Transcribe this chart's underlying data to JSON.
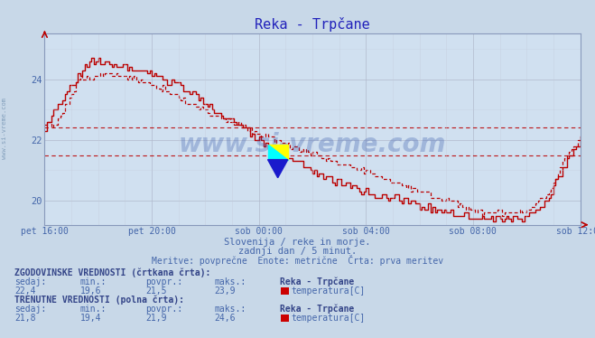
{
  "title": "Reka - Trpčane",
  "subtitle1": "Slovenija / reke in morje.",
  "subtitle2": "zadnji dan / 5 minut.",
  "subtitle3": "Meritve: povprečne  Enote: metrične  Črta: prva meritev",
  "xlabel_ticks": [
    "pet 16:00",
    "pet 20:00",
    "sob 00:00",
    "sob 04:00",
    "sob 08:00",
    "sob 12:00"
  ],
  "ylabel_ticks": [
    20,
    22,
    24
  ],
  "ylim": [
    19.2,
    25.5
  ],
  "xlim": [
    0,
    240
  ],
  "tick_positions": [
    0,
    48,
    96,
    144,
    192,
    240
  ],
  "bg_color": "#c8d8e8",
  "plot_bg_color": "#d0e0f0",
  "grid_color_major": "#b0b8cc",
  "grid_color_minor": "#c4ccdc",
  "line_color": "#bb0000",
  "title_color": "#2222bb",
  "text_color": "#4466aa",
  "label_color": "#334488",
  "axis_color": "#8899bb",
  "ref_line1_y": 22.4,
  "ref_line2_y": 21.5,
  "hist_label": "ZGODOVINSKE VREDNOSTI (črtkana črta):",
  "hist_sedaj": "22,4",
  "hist_min": "19,6",
  "hist_povpr": "21,5",
  "hist_maks": "23,9",
  "curr_label": "TRENUTNE VREDNOSTI (polna črta):",
  "curr_sedaj": "21,8",
  "curr_min": "19,4",
  "curr_povpr": "21,9",
  "curr_maks": "24,6",
  "station": "Reka - Trpčane",
  "measure": "temperatura[C]",
  "legend_color": "#cc0000",
  "watermark": "www.si-vreme.com",
  "watermark_color": "#3355aa",
  "watermark_alpha": 0.3,
  "side_watermark": "www.si-vreme.com",
  "side_watermark_color": "#6688aa",
  "side_watermark_alpha": 0.7
}
